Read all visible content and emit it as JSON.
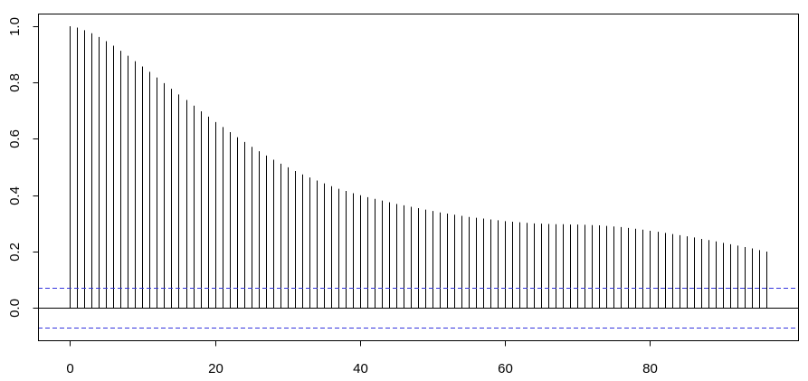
{
  "chart_data": {
    "type": "bar",
    "title": "",
    "xlabel": "",
    "ylabel": "",
    "xlim": [
      -4.4,
      100.4
    ],
    "ylim": [
      -0.115,
      1.045
    ],
    "x_ticks": [
      0,
      20,
      40,
      60,
      80
    ],
    "y_ticks": [
      0.0,
      0.2,
      0.4,
      0.6,
      0.8,
      1.0
    ],
    "x_tick_labels": [
      "0",
      "20",
      "40",
      "60",
      "80"
    ],
    "y_tick_labels": [
      "0.0",
      "0.2",
      "0.4",
      "0.6",
      "0.8",
      "1.0"
    ],
    "confidence_bounds": [
      0.07,
      -0.07
    ],
    "confidence_color": "#3333dd",
    "spike_color": "#000000",
    "grid": false,
    "lags": [
      0,
      1,
      2,
      3,
      4,
      5,
      6,
      7,
      8,
      9,
      10,
      11,
      12,
      13,
      14,
      15,
      16,
      17,
      18,
      19,
      20,
      21,
      22,
      23,
      24,
      25,
      26,
      27,
      28,
      29,
      30,
      31,
      32,
      33,
      34,
      35,
      36,
      37,
      38,
      39,
      40,
      41,
      42,
      43,
      44,
      45,
      46,
      47,
      48,
      49,
      50,
      51,
      52,
      53,
      54,
      55,
      56,
      57,
      58,
      59,
      60,
      61,
      62,
      63,
      64,
      65,
      66,
      67,
      68,
      69,
      70,
      71,
      72,
      73,
      74,
      75,
      76,
      77,
      78,
      79,
      80,
      81,
      82,
      83,
      84,
      85,
      86,
      87,
      88,
      89,
      90,
      91,
      92,
      93,
      94,
      95,
      96
    ],
    "values": [
      1.0,
      0.995,
      0.986,
      0.975,
      0.962,
      0.947,
      0.931,
      0.913,
      0.895,
      0.876,
      0.857,
      0.838,
      0.818,
      0.798,
      0.778,
      0.758,
      0.738,
      0.718,
      0.698,
      0.679,
      0.66,
      0.642,
      0.624,
      0.606,
      0.589,
      0.572,
      0.556,
      0.541,
      0.526,
      0.512,
      0.499,
      0.486,
      0.474,
      0.463,
      0.452,
      0.442,
      0.432,
      0.423,
      0.415,
      0.407,
      0.4,
      0.393,
      0.387,
      0.381,
      0.375,
      0.369,
      0.364,
      0.359,
      0.354,
      0.349,
      0.344,
      0.339,
      0.335,
      0.331,
      0.327,
      0.323,
      0.32,
      0.317,
      0.314,
      0.311,
      0.308,
      0.306,
      0.304,
      0.302,
      0.3,
      0.299,
      0.298,
      0.297,
      0.297,
      0.296,
      0.296,
      0.295,
      0.294,
      0.293,
      0.291,
      0.289,
      0.287,
      0.284,
      0.281,
      0.278,
      0.274,
      0.27,
      0.266,
      0.262,
      0.258,
      0.254,
      0.25,
      0.245,
      0.241,
      0.236,
      0.231,
      0.226,
      0.221,
      0.216,
      0.211,
      0.205,
      0.2
    ]
  }
}
